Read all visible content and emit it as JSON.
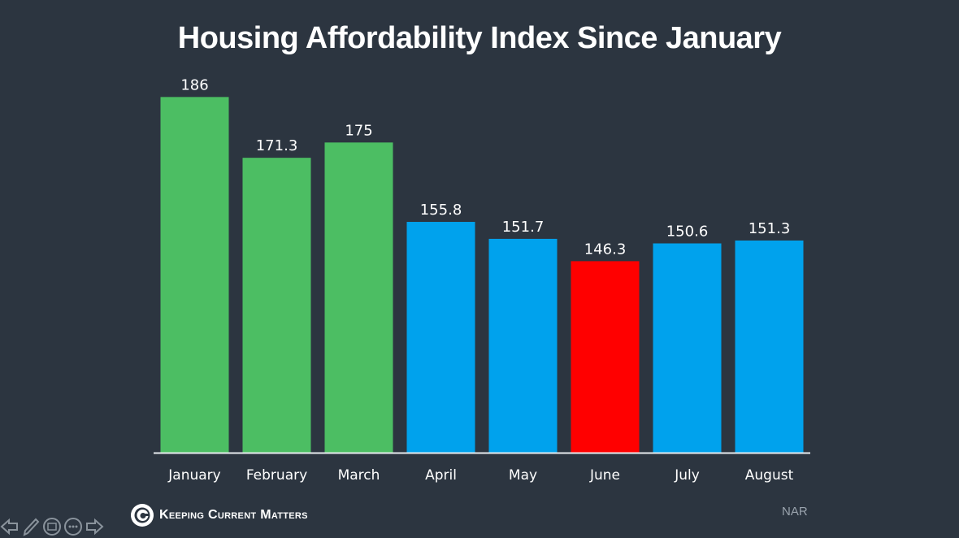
{
  "chart_data": {
    "type": "bar",
    "title": "Housing Affordability Index Since January",
    "categories": [
      "January",
      "February",
      "March",
      "April",
      "May",
      "June",
      "July",
      "August"
    ],
    "values": [
      186,
      171.3,
      175,
      155.8,
      151.7,
      146.3,
      150.6,
      151.3
    ],
    "value_labels": [
      "186",
      "171.3",
      "175",
      "155.8",
      "151.7",
      "146.3",
      "150.6",
      "151.3"
    ],
    "bar_colors": [
      "#4cbe63",
      "#4cbe63",
      "#4cbe63",
      "#00a2ed",
      "#00a2ed",
      "#ff0000",
      "#00a2ed",
      "#00a2ed"
    ],
    "xlabel": "",
    "ylabel": "",
    "ylim": [
      100,
      190
    ],
    "grid": false,
    "legend": "none"
  },
  "footer": {
    "brand": "Keeping Current Matters",
    "source": "NAR"
  },
  "colors": {
    "background": "#2c3540",
    "green": "#4cbe63",
    "blue": "#00a2ed",
    "red": "#ff0000"
  }
}
